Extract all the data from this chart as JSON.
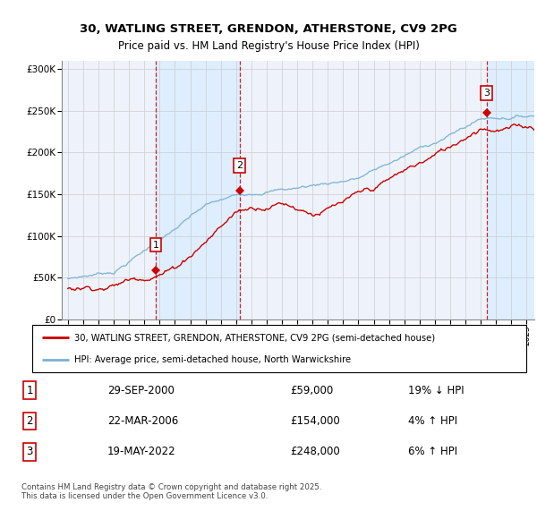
{
  "title_line1": "30, WATLING STREET, GRENDON, ATHERSTONE, CV9 2PG",
  "title_line2": "Price paid vs. HM Land Registry's House Price Index (HPI)",
  "ylim": [
    0,
    310000
  ],
  "yticks": [
    0,
    50000,
    100000,
    150000,
    200000,
    250000,
    300000
  ],
  "ytick_labels": [
    "£0",
    "£50K",
    "£100K",
    "£150K",
    "£200K",
    "£250K",
    "£300K"
  ],
  "grid_color": "#cccccc",
  "hpi_color": "#7ab0d4",
  "price_color": "#cc0000",
  "shade_color": "#ddeeff",
  "sale1_year": 2000.75,
  "sale1_price": 59000,
  "sale2_year": 2006.22,
  "sale2_price": 154000,
  "sale3_year": 2022.38,
  "sale3_price": 248000,
  "legend_house": "30, WATLING STREET, GRENDON, ATHERSTONE, CV9 2PG (semi-detached house)",
  "legend_hpi": "HPI: Average price, semi-detached house, North Warwickshire",
  "sale1_date": "29-SEP-2000",
  "sale1_amount": "£59,000",
  "sale1_hpi": "19% ↓ HPI",
  "sale2_date": "22-MAR-2006",
  "sale2_amount": "£154,000",
  "sale2_hpi": "4% ↑ HPI",
  "sale3_date": "19-MAY-2022",
  "sale3_amount": "£248,000",
  "sale3_hpi": "6% ↑ HPI",
  "footer": "Contains HM Land Registry data © Crown copyright and database right 2025.\nThis data is licensed under the Open Government Licence v3.0."
}
